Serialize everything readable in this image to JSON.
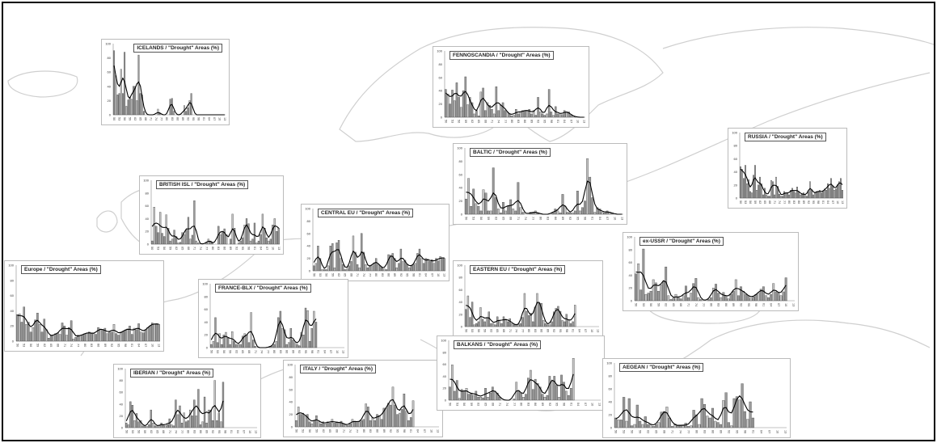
{
  "shared_axis": {
    "x_ticks": [
      "50",
      "53",
      "56",
      "59",
      "62",
      "65",
      "68",
      "71",
      "74",
      "77",
      "80",
      "83",
      "86",
      "89",
      "92",
      "95",
      "98",
      "01",
      "04",
      "07",
      "10",
      "13"
    ],
    "y_ticks": [
      "0",
      "20",
      "40",
      "60",
      "80",
      "100"
    ]
  },
  "colors": {
    "bar": "#9a9a9a",
    "bar_edge": "#3a3a3a",
    "line": "#000000",
    "map": "#cfcfcf"
  },
  "chart_data": [
    {
      "id": "icelands",
      "type": "bar",
      "title": "ICELANDS / \"Drought\" Areas (%)",
      "start_year": 1950,
      "ylim": [
        0,
        100
      ],
      "values": [
        90,
        55,
        28,
        30,
        64,
        30,
        88,
        12,
        21,
        25,
        22,
        40,
        40,
        20,
        84,
        30,
        28,
        5,
        0,
        0,
        0,
        0,
        0,
        0,
        0,
        8,
        2,
        0,
        0,
        0,
        0,
        0,
        22,
        23,
        5,
        0,
        0,
        0,
        0,
        0,
        13,
        5,
        10,
        20,
        30,
        0,
        0,
        0,
        0,
        0,
        0,
        0,
        0,
        0,
        0,
        0,
        0,
        0,
        0,
        0,
        0,
        0,
        0,
        0
      ]
    },
    {
      "id": "fennoscandia",
      "type": "bar",
      "title": "FENNOSCANDIA / \"Drought\" Areas (%)",
      "start_year": 1950,
      "ylim": [
        0,
        100
      ],
      "values": [
        42,
        35,
        20,
        41,
        25,
        52,
        30,
        15,
        40,
        61,
        19,
        30,
        22,
        5,
        10,
        2,
        38,
        44,
        10,
        22,
        18,
        12,
        5,
        46,
        10,
        18,
        22,
        10,
        8,
        5,
        2,
        3,
        12,
        5,
        8,
        10,
        10,
        10,
        12,
        5,
        10,
        3,
        30,
        8,
        5,
        3,
        5,
        42,
        8,
        3,
        16,
        5,
        4,
        4,
        10,
        8,
        8,
        3,
        2,
        1,
        0,
        0,
        0,
        0
      ]
    },
    {
      "id": "russia",
      "type": "bar",
      "title": "RUSSIA / \"Drought\" Areas (%)",
      "start_year": 1950,
      "ylim": [
        0,
        100
      ],
      "values": [
        48,
        44,
        30,
        50,
        22,
        28,
        10,
        8,
        35,
        50,
        12,
        20,
        32,
        22,
        5,
        15,
        5,
        3,
        3,
        27,
        25,
        5,
        32,
        18,
        6,
        3,
        3,
        10,
        8,
        8,
        5,
        12,
        15,
        10,
        8,
        17,
        10,
        5,
        6,
        8,
        4,
        3,
        10,
        25,
        12,
        5,
        8,
        10,
        10,
        12,
        8,
        10,
        14,
        12,
        22,
        15,
        30,
        18,
        12,
        14,
        20,
        25,
        30,
        12
      ]
    },
    {
      "id": "british-isl",
      "type": "bar",
      "title": "BRITISH ISL / \"Drought\" Areas (%)",
      "start_year": 1950,
      "ylim": [
        0,
        100
      ],
      "values": [
        5,
        58,
        28,
        18,
        50,
        17,
        12,
        46,
        25,
        5,
        8,
        22,
        12,
        2,
        3,
        18,
        15,
        22,
        42,
        8,
        14,
        68,
        5,
        2,
        0,
        0,
        0,
        2,
        8,
        5,
        2,
        0,
        0,
        28,
        15,
        20,
        24,
        15,
        0,
        8,
        47,
        25,
        0,
        2,
        5,
        10,
        30,
        40,
        32,
        5,
        8,
        33,
        2,
        5,
        15,
        47,
        25,
        10,
        5,
        8,
        30,
        40,
        20,
        25
      ]
    },
    {
      "id": "baltic",
      "type": "bar",
      "title": "BALTIC / \"Drought\" Areas (%)",
      "start_year": 1950,
      "ylim": [
        0,
        100
      ],
      "values": [
        23,
        54,
        12,
        38,
        16,
        12,
        5,
        37,
        32,
        5,
        5,
        70,
        25,
        8,
        2,
        18,
        5,
        12,
        22,
        8,
        5,
        48,
        10,
        3,
        0,
        0,
        3,
        2,
        5,
        2,
        0,
        0,
        0,
        0,
        0,
        2,
        8,
        5,
        2,
        30,
        12,
        3,
        2,
        2,
        5,
        35,
        5,
        10,
        20,
        84,
        56,
        25,
        3,
        10,
        8,
        3,
        2,
        5,
        3,
        2,
        0,
        0,
        0,
        0
      ]
    },
    {
      "id": "central-eu",
      "type": "bar",
      "title": "CENTRAL EU / \"Drought\" Areas (%)",
      "start_year": 1950,
      "ylim": [
        0,
        100
      ],
      "values": [
        8,
        12,
        40,
        20,
        2,
        2,
        2,
        8,
        40,
        44,
        5,
        45,
        49,
        20,
        10,
        2,
        3,
        8,
        15,
        56,
        30,
        10,
        5,
        60,
        30,
        10,
        5,
        8,
        8,
        12,
        20,
        10,
        8,
        5,
        3,
        2,
        26,
        25,
        28,
        20,
        5,
        12,
        35,
        15,
        17,
        10,
        5,
        8,
        10,
        12,
        28,
        35,
        20,
        12,
        20,
        19,
        15,
        18,
        12,
        20,
        16,
        23,
        21,
        20
      ]
    },
    {
      "id": "ex-ussr",
      "type": "bar",
      "title": "ex-USSR / \"Drought\" Areas (%)",
      "start_year": 1950,
      "ylim": [
        0,
        100
      ],
      "values": [
        42,
        58,
        17,
        81,
        10,
        12,
        15,
        33,
        28,
        15,
        25,
        30,
        53,
        8,
        2,
        4,
        10,
        5,
        3,
        8,
        23,
        5,
        12,
        27,
        35,
        5,
        2,
        0,
        0,
        2,
        5,
        20,
        26,
        12,
        5,
        13,
        8,
        3,
        10,
        15,
        33,
        8,
        22,
        15,
        10,
        8,
        4,
        6,
        10,
        12,
        18,
        22,
        8,
        5,
        10,
        27,
        14,
        12,
        8,
        14,
        36
      ]
    },
    {
      "id": "europe",
      "type": "bar",
      "title": "Europe / \"Drought\" Areas (%)",
      "start_year": 1950,
      "ylim": [
        0,
        100
      ],
      "values": [
        35,
        36,
        25,
        45,
        22,
        25,
        12,
        18,
        28,
        37,
        22,
        12,
        29,
        15,
        4,
        8,
        7,
        10,
        11,
        9,
        24,
        20,
        8,
        18,
        27,
        3,
        5,
        8,
        7,
        8,
        10,
        11,
        12,
        10,
        10,
        9,
        18,
        16,
        14,
        17,
        10,
        12,
        12,
        22,
        10,
        8,
        12,
        13,
        14,
        16,
        20,
        9,
        17,
        15,
        23,
        12,
        11,
        15,
        18,
        20,
        24,
        22,
        23,
        22
      ]
    },
    {
      "id": "france-blx",
      "type": "bar",
      "title": "FRANCE-BLX / \"Drought\" Areas (%)",
      "start_year": 1950,
      "ylim": [
        0,
        100
      ],
      "values": [
        5,
        10,
        47,
        8,
        22,
        5,
        20,
        24,
        15,
        5,
        25,
        10,
        5,
        5,
        5,
        18,
        22,
        20,
        8,
        55,
        12,
        2,
        0,
        0,
        0,
        0,
        0,
        0,
        2,
        2,
        5,
        10,
        47,
        57,
        30,
        28,
        5,
        8,
        30,
        12,
        8,
        5,
        3,
        24,
        20,
        62,
        58,
        10,
        30,
        57,
        40
      ]
    },
    {
      "id": "eastern-eu",
      "type": "bar",
      "title": "EASTERN EU / \"Drought\" Areas (%)",
      "start_year": 1950,
      "ylim": [
        0,
        100
      ],
      "values": [
        28,
        50,
        15,
        40,
        3,
        5,
        8,
        31,
        12,
        8,
        15,
        24,
        5,
        5,
        3,
        16,
        10,
        5,
        16,
        12,
        8,
        13,
        5,
        3,
        2,
        3,
        5,
        15,
        54,
        25,
        18,
        22,
        8,
        32,
        54,
        38,
        38,
        10,
        5,
        3,
        3,
        8,
        24,
        30,
        33,
        25,
        10,
        8,
        20,
        10,
        5,
        8,
        35
      ]
    },
    {
      "id": "iberian",
      "type": "bar",
      "title": "IBERIAN / \"Drought\" Areas (%)",
      "start_year": 1950,
      "ylim": [
        0,
        100
      ],
      "values": [
        8,
        5,
        44,
        38,
        12,
        24,
        10,
        12,
        3,
        2,
        2,
        5,
        30,
        8,
        3,
        2,
        3,
        8,
        5,
        3,
        5,
        15,
        5,
        3,
        47,
        22,
        37,
        8,
        25,
        10,
        12,
        30,
        20,
        47,
        20,
        65,
        5,
        10,
        52,
        8,
        30,
        30,
        12,
        80,
        12,
        25,
        10,
        77
      ]
    },
    {
      "id": "italy",
      "type": "bar",
      "title": "ITALY / \"Drought\" Areas (%)",
      "start_year": 1950,
      "ylim": [
        0,
        100
      ],
      "values": [
        10,
        32,
        20,
        22,
        18,
        20,
        8,
        5,
        10,
        18,
        8,
        5,
        8,
        5,
        8,
        6,
        12,
        6,
        8,
        6,
        9,
        5,
        3,
        2,
        5,
        12,
        8,
        8,
        8,
        10,
        12,
        37,
        32,
        10,
        15,
        10,
        20,
        18,
        12,
        30,
        30,
        38,
        35,
        64,
        35,
        20,
        22,
        28,
        53,
        25,
        10,
        15,
        42
      ]
    },
    {
      "id": "balkans",
      "type": "bar",
      "title": "BALKANS / \"Drought\" Areas (%)",
      "start_year": 1950,
      "ylim": [
        0,
        100
      ],
      "values": [
        22,
        59,
        15,
        33,
        3,
        18,
        15,
        20,
        10,
        12,
        8,
        15,
        5,
        5,
        4,
        20,
        5,
        12,
        22,
        15,
        12,
        5,
        0,
        0,
        0,
        0,
        0,
        2,
        30,
        15,
        12,
        5,
        10,
        37,
        50,
        18,
        35,
        28,
        22,
        10,
        5,
        8,
        40,
        32,
        40,
        25,
        5,
        42,
        30,
        15,
        8,
        20,
        70
      ]
    },
    {
      "id": "aegean",
      "type": "bar",
      "title": "AEGEAN / \"Drought\" Areas (%)",
      "start_year": 1950,
      "ylim": [
        0,
        100
      ],
      "values": [
        15,
        12,
        12,
        47,
        10,
        45,
        3,
        5,
        35,
        10,
        5,
        17,
        5,
        5,
        2,
        5,
        8,
        24,
        25,
        32,
        15,
        2,
        6,
        3,
        3,
        3,
        7,
        2,
        3,
        27,
        20,
        5,
        45,
        36,
        18,
        15,
        30,
        10,
        8,
        5,
        42,
        54,
        8,
        3,
        45,
        48,
        43,
        68,
        25,
        13,
        40,
        15
      ]
    }
  ]
}
